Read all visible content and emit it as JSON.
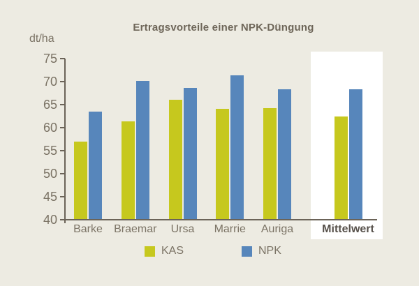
{
  "title": "Ertragsvorteile einer NPK-Düngung",
  "y_axis_unit_label": "dt/ha",
  "colors": {
    "background": "#edebe2",
    "axis": "#6b6358",
    "text": "#7b7365",
    "title_text": "#6e6659",
    "highlight_box": "#ffffff",
    "kas_bar": "#c6c81e",
    "npk_bar": "#5786bb"
  },
  "chart_data": {
    "type": "bar",
    "title": "Ertragsvorteile einer NPK-Düngung",
    "xlabel": "",
    "ylabel": "dt/ha",
    "ylim": [
      40,
      75
    ],
    "ytick_step": 5,
    "ytick_labels": [
      "40",
      "45",
      "50",
      "55",
      "60",
      "65",
      "70",
      "75"
    ],
    "grid": false,
    "legend_position": "bottom",
    "categories": [
      "Barke",
      "Braemar",
      "Ursa",
      "Marrie",
      "Auriga",
      "Mittelwert"
    ],
    "highlighted_category": "Mittelwert",
    "series": [
      {
        "name": "KAS",
        "color": "#c6c81e",
        "values": [
          57.0,
          61.3,
          66.0,
          64.1,
          64.3,
          62.5
        ]
      },
      {
        "name": "NPK",
        "color": "#5786bb",
        "values": [
          63.5,
          70.2,
          68.7,
          71.4,
          68.3,
          68.4
        ]
      }
    ]
  }
}
